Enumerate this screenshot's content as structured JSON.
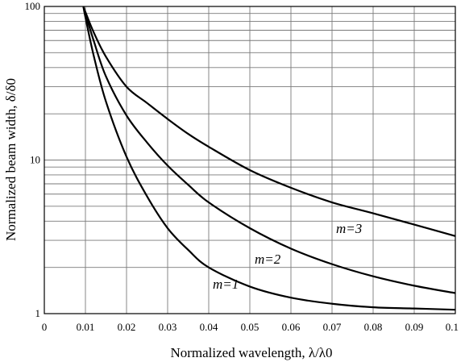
{
  "chart_data": {
    "type": "line",
    "xlabel": "Normalized wavelength, λ/λ0",
    "ylabel": "Normalized beam width, δ/δ0",
    "xlim": [
      0,
      0.1
    ],
    "ylim": [
      1,
      100
    ],
    "y_scale": "log",
    "grid": true,
    "x_ticks": [
      "0",
      "0.01",
      "0.02",
      "0.03",
      "0.04",
      "0.05",
      "0.06",
      "0.07",
      "0.08",
      "0.09",
      "0.1"
    ],
    "y_ticks": [
      "1",
      "10",
      "100"
    ],
    "series": [
      {
        "name": "m=1",
        "x": [
          0.0095,
          0.01,
          0.012,
          0.015,
          0.02,
          0.025,
          0.03,
          0.035,
          0.04,
          0.05,
          0.06,
          0.07,
          0.08,
          0.09,
          0.1
        ],
        "y": [
          100,
          85,
          48,
          24,
          10.5,
          5.8,
          3.6,
          2.6,
          2.0,
          1.5,
          1.27,
          1.16,
          1.1,
          1.08,
          1.06
        ]
      },
      {
        "name": "m=2",
        "x": [
          0.0095,
          0.01,
          0.012,
          0.015,
          0.02,
          0.025,
          0.03,
          0.035,
          0.04,
          0.05,
          0.06,
          0.07,
          0.08,
          0.09,
          0.1
        ],
        "y": [
          100,
          90,
          60,
          35,
          19.5,
          13,
          9.2,
          6.9,
          5.3,
          3.6,
          2.65,
          2.1,
          1.75,
          1.52,
          1.36
        ]
      },
      {
        "name": "m=3",
        "x": [
          0.0095,
          0.01,
          0.012,
          0.015,
          0.02,
          0.025,
          0.03,
          0.035,
          0.04,
          0.05,
          0.06,
          0.07,
          0.08,
          0.09,
          0.1
        ],
        "y": [
          100,
          92,
          68,
          47,
          30,
          23.5,
          18.5,
          14.8,
          12.2,
          8.6,
          6.6,
          5.3,
          4.5,
          3.8,
          3.2
        ]
      }
    ]
  }
}
